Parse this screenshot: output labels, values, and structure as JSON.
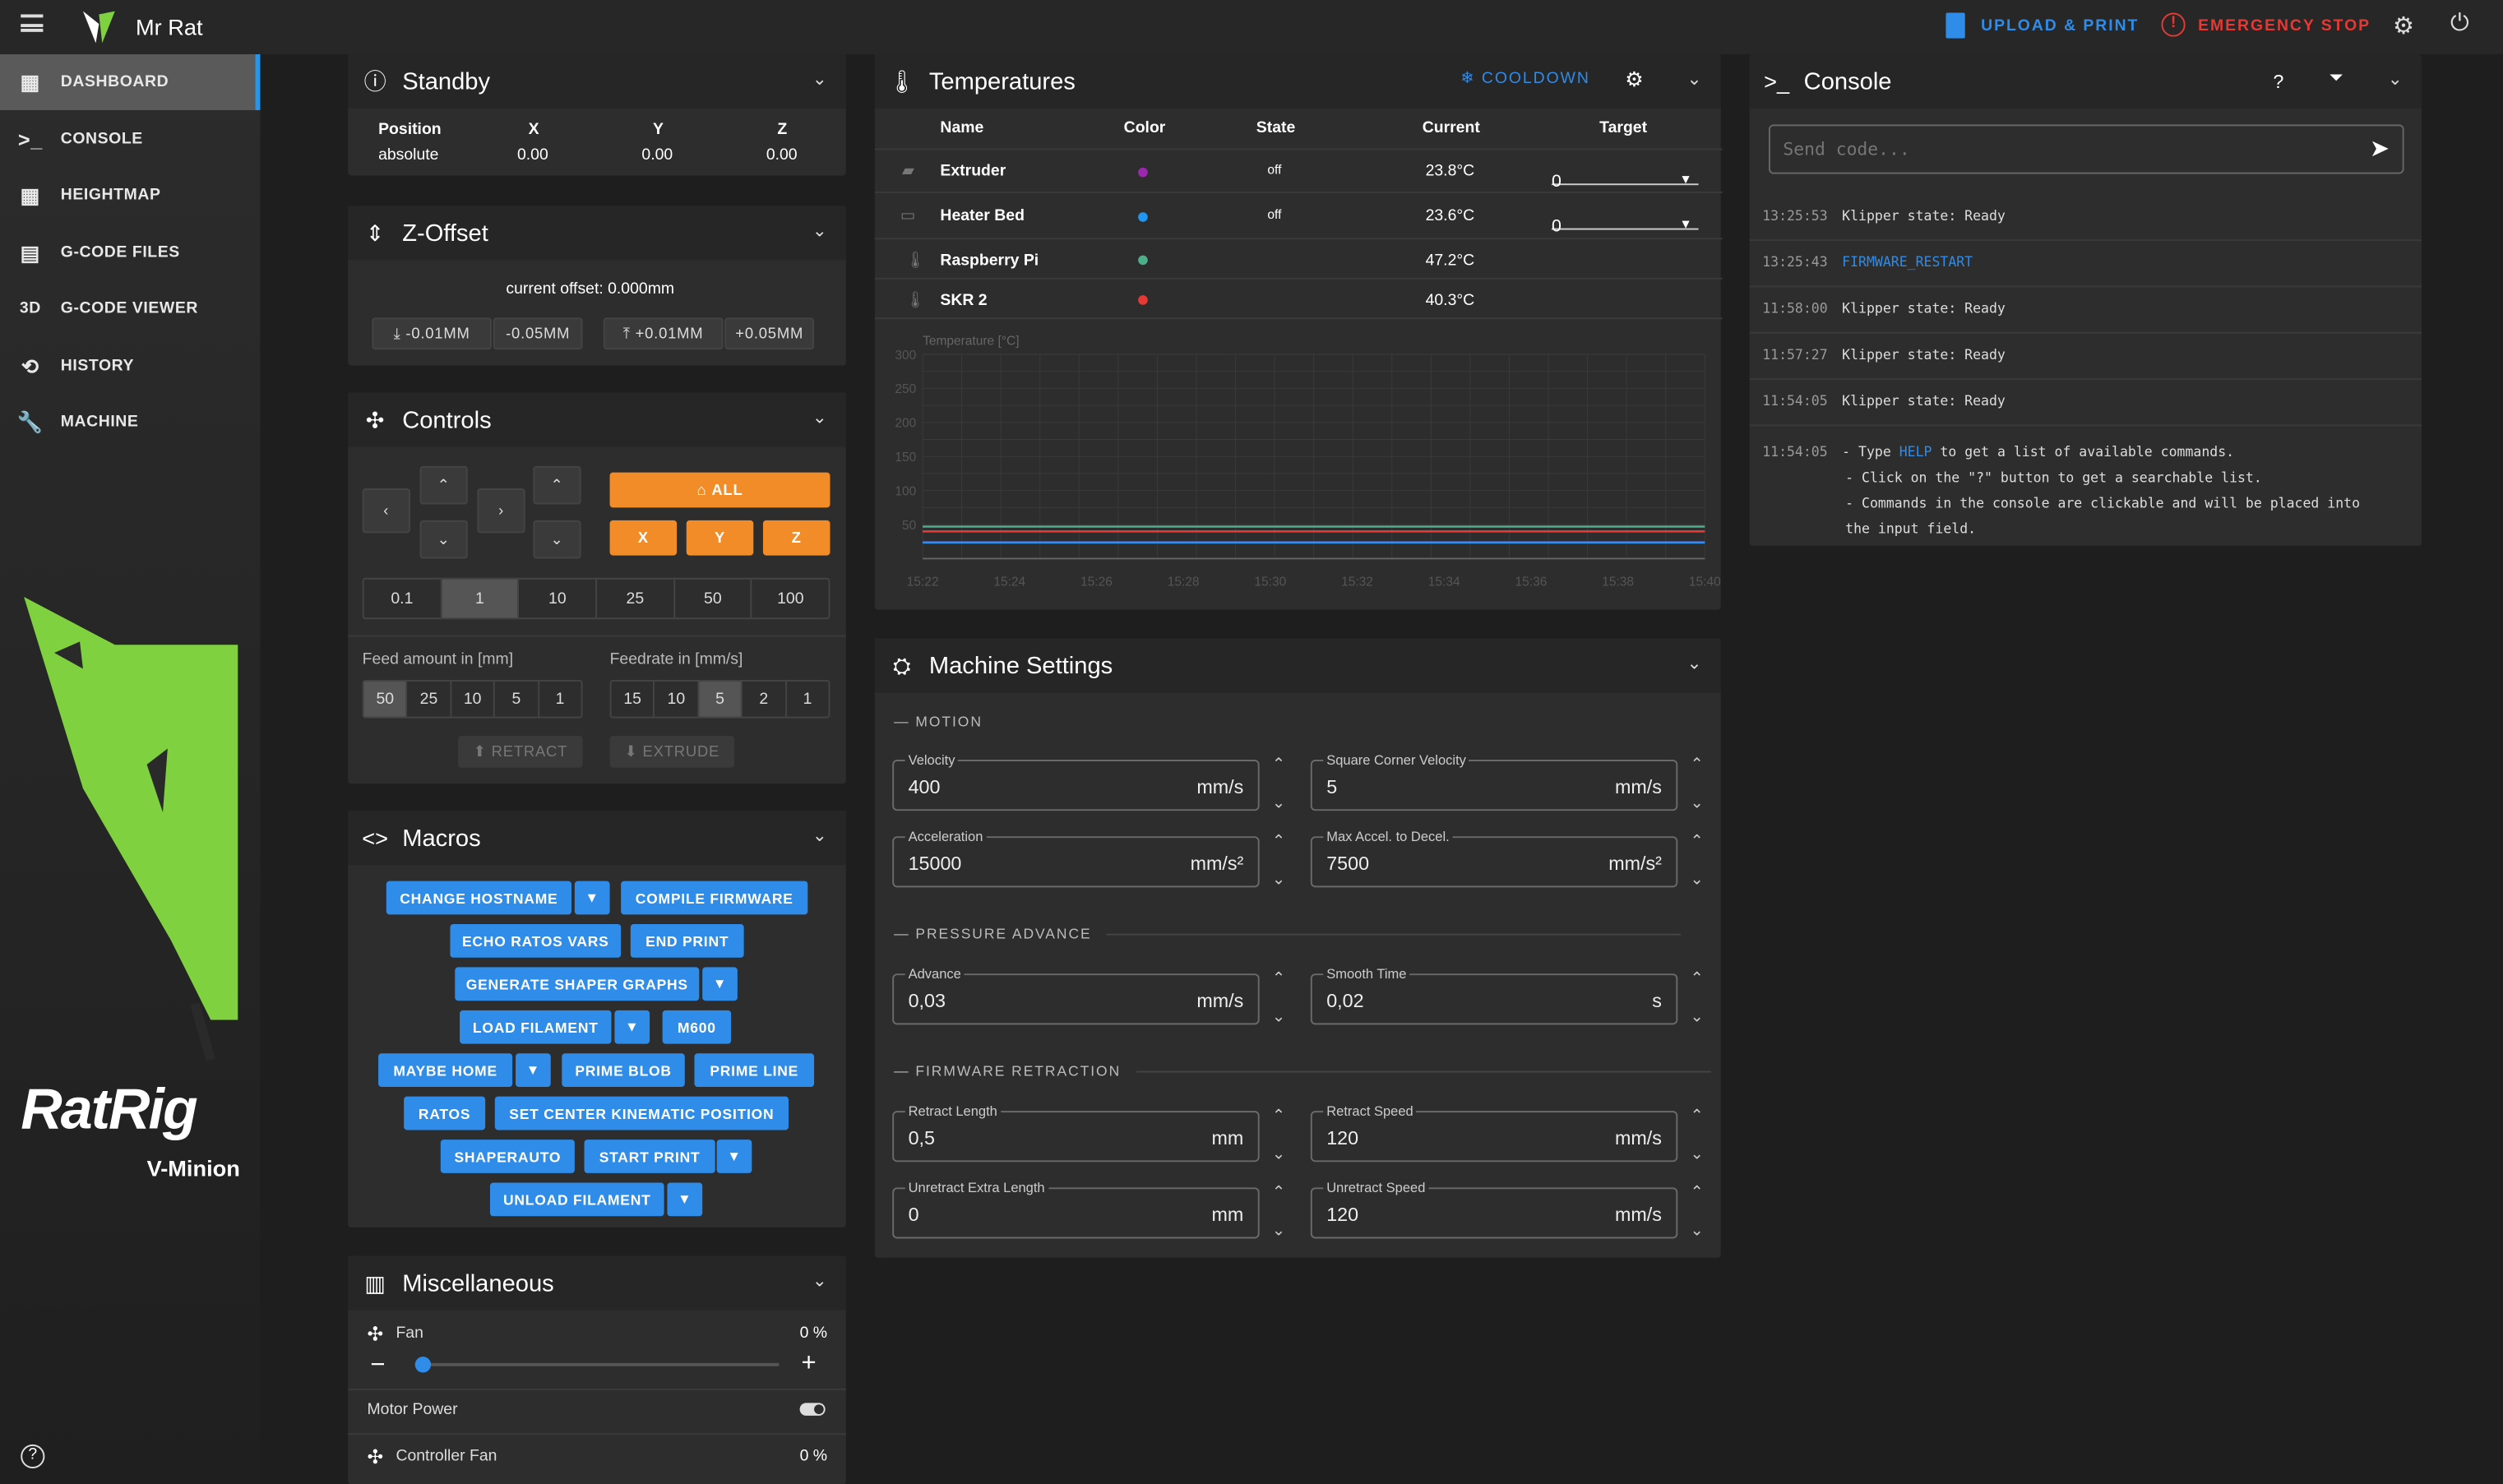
{
  "app": {
    "title": "Mr Rat",
    "upload_label": "UPLOAD & PRINT",
    "estop_label": "EMERGENCY STOP"
  },
  "nav": [
    {
      "label": "DASHBOARD",
      "icon": "dashboard-icon"
    },
    {
      "label": "CONSOLE",
      "icon": "console-icon"
    },
    {
      "label": "HEIGHTMAP",
      "icon": "grid-icon"
    },
    {
      "label": "G-CODE FILES",
      "icon": "files-icon"
    },
    {
      "label": "G-CODE VIEWER",
      "icon": "3d-icon"
    },
    {
      "label": "HISTORY",
      "icon": "history-icon"
    },
    {
      "label": "MACHINE",
      "icon": "wrench-icon"
    }
  ],
  "logo": {
    "brand": "RatRig",
    "model": "V-Minion"
  },
  "standby": {
    "title": "Standby",
    "headers": [
      "Position",
      "X",
      "Y",
      "Z"
    ],
    "values": [
      "absolute",
      "0.00",
      "0.00",
      "0.00"
    ]
  },
  "zoffset": {
    "title": "Z-Offset",
    "current": "current offset: 0.000mm",
    "down": [
      "-0.01MM",
      "-0.05MM"
    ],
    "up": [
      "+0.01MM",
      "+0.05MM"
    ]
  },
  "controls": {
    "title": "Controls",
    "home_all": "ALL",
    "home_axes": [
      "X",
      "Y",
      "Z"
    ],
    "steps": [
      "0.1",
      "1",
      "10",
      "25",
      "50",
      "100"
    ],
    "feed_label": "Feed amount in [mm]",
    "feed": [
      "50",
      "25",
      "10",
      "5",
      "1"
    ],
    "rate_label": "Feedrate in [mm/s]",
    "rate": [
      "15",
      "10",
      "5",
      "2",
      "1"
    ],
    "retract": "RETRACT",
    "extrude": "EXTRUDE"
  },
  "macros": {
    "title": "Macros",
    "rows": [
      [
        "CHANGE HOSTNAME",
        "COMPILE FIRMWARE"
      ],
      [
        "ECHO RATOS VARS",
        "END PRINT"
      ],
      [
        "GENERATE SHAPER GRAPHS"
      ],
      [
        "LOAD FILAMENT",
        "M600"
      ],
      [
        "MAYBE HOME",
        "PRIME BLOB",
        "PRIME LINE"
      ],
      [
        "RATOS",
        "SET CENTER KINEMATIC POSITION"
      ],
      [
        "SHAPERAUTO",
        "START PRINT"
      ],
      [
        "UNLOAD FILAMENT"
      ]
    ]
  },
  "misc": {
    "title": "Miscellaneous",
    "fan": "Fan",
    "fan_val": "0 %",
    "fan_level": 0.0,
    "motor": "Motor Power",
    "cfan": "Controller Fan",
    "cfan_val": "0 %"
  },
  "temps": {
    "title": "Temperatures",
    "cooldown": "COOLDOWN",
    "headers": [
      "Name",
      "Color",
      "State",
      "Current",
      "Target"
    ],
    "rows": [
      {
        "name": "Extruder",
        "color": "#9c27b0",
        "state": "off",
        "current": "23.8°C",
        "target": "0"
      },
      {
        "name": "Heater Bed",
        "color": "#2196f3",
        "state": "off",
        "current": "23.6°C",
        "target": "0"
      },
      {
        "name": "Raspberry Pi",
        "color": "#4caf8a",
        "state": "",
        "current": "47.2°C",
        "target": ""
      },
      {
        "name": "SKR 2",
        "color": "#e53935",
        "state": "",
        "current": "40.3°C",
        "target": ""
      }
    ],
    "chart_label": "Temperature [°C]"
  },
  "chart_data": {
    "type": "line",
    "x": [
      "15:22",
      "15:24",
      "15:26",
      "15:28",
      "15:30",
      "15:32",
      "15:34",
      "15:36",
      "15:38",
      "15:40"
    ],
    "ylim": [
      0,
      300
    ],
    "yticks": [
      50,
      100,
      150,
      200,
      250,
      300
    ],
    "series": [
      {
        "name": "Raspberry Pi",
        "color": "#4caf8a",
        "values": [
          47,
          47,
          47,
          47,
          47,
          47,
          47,
          47,
          47,
          47
        ]
      },
      {
        "name": "SKR 2",
        "color": "#e53935",
        "values": [
          40,
          40,
          40,
          40,
          40,
          40,
          40,
          40,
          40,
          40
        ]
      },
      {
        "name": "Extruder",
        "color": "#9c27b0",
        "values": [
          24,
          24,
          24,
          24,
          24,
          24,
          24,
          24,
          24,
          24
        ]
      },
      {
        "name": "Heater Bed",
        "color": "#2196f3",
        "values": [
          23.6,
          23.6,
          23.6,
          23.6,
          23.6,
          23.6,
          23.6,
          23.6,
          23.6,
          23.6
        ]
      }
    ]
  },
  "machine": {
    "title": "Machine Settings",
    "motion": "MOTION",
    "pa": "PRESSURE ADVANCE",
    "fr": "FIRMWARE RETRACTION",
    "fields": [
      {
        "label": "Velocity",
        "value": "400",
        "unit": "mm/s"
      },
      {
        "label": "Square Corner Velocity",
        "value": "5",
        "unit": "mm/s"
      },
      {
        "label": "Acceleration",
        "value": "15000",
        "unit": "mm/s²"
      },
      {
        "label": "Max Accel. to Decel.",
        "value": "7500",
        "unit": "mm/s²"
      },
      {
        "label": "Advance",
        "value": "0,03",
        "unit": "mm/s"
      },
      {
        "label": "Smooth Time",
        "value": "0,02",
        "unit": "s"
      },
      {
        "label": "Retract Length",
        "value": "0,5",
        "unit": "mm"
      },
      {
        "label": "Retract Speed",
        "value": "120",
        "unit": "mm/s"
      },
      {
        "label": "Unretract Extra Length",
        "value": "0",
        "unit": "mm"
      },
      {
        "label": "Unretract Speed",
        "value": "120",
        "unit": "mm/s"
      }
    ]
  },
  "console": {
    "title": "Console",
    "placeholder": "Send code...",
    "help": "?",
    "entries": [
      {
        "t": "13:25:53",
        "m": "Klipper state: Ready"
      },
      {
        "t": "13:25:43",
        "m": "FIRMWARE_RESTART"
      },
      {
        "t": "11:58:00",
        "m": "Klipper state: Ready"
      },
      {
        "t": "11:57:27",
        "m": "Klipper state: Ready"
      },
      {
        "t": "11:54:05",
        "m": "Klipper state: Ready"
      }
    ],
    "help_t": "11:54:05",
    "help_pre": "- Type ",
    "help_kw": "HELP",
    "help_post": " to get a list of available commands.",
    "help2": "- Click on the \"?\" button to get a searchable list.",
    "help3": "- Commands in the console are clickable and will be placed into",
    "help4": "the input field."
  }
}
